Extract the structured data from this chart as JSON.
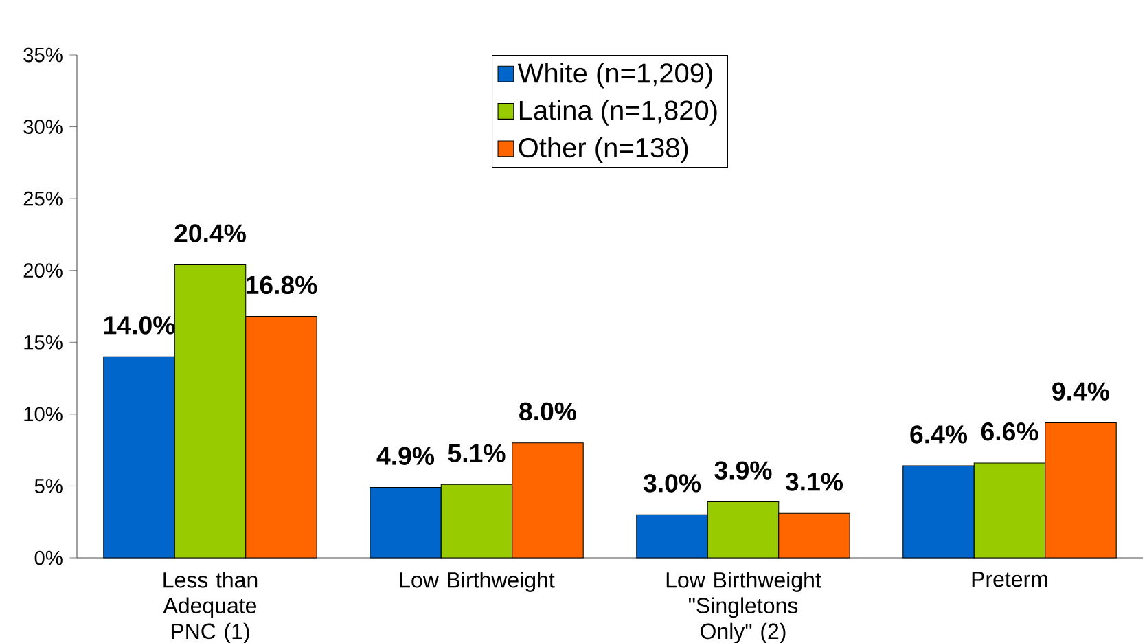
{
  "chart_data": {
    "type": "bar",
    "categories": [
      "Less than Adequate PNC (1)",
      "Low Birthweight",
      "Low Birthweight \"Singletons Only\" (2)",
      "Preterm"
    ],
    "series": [
      {
        "name": "White (n=1,209)",
        "color": "#0066cc",
        "values": [
          14.0,
          4.9,
          3.0,
          6.4
        ],
        "value_labels": [
          "14.0%",
          "4.9%",
          "3.0%",
          "6.4%"
        ]
      },
      {
        "name": "Latina (n=1,820)",
        "color": "#99cc00",
        "values": [
          20.4,
          5.1,
          3.9,
          6.6
        ],
        "value_labels": [
          "20.4%",
          "5.1%",
          "3.9%",
          "6.6%"
        ]
      },
      {
        "name": "Other (n=138)",
        "color": "#ff6600",
        "values": [
          16.8,
          8.0,
          3.1,
          9.4
        ],
        "value_labels": [
          "16.8%",
          "8.0%",
          "3.1%",
          "9.4%"
        ]
      }
    ],
    "ylim": [
      0,
      35
    ],
    "yticks": [
      {
        "value": 0,
        "label": "0%"
      },
      {
        "value": 5,
        "label": "5%"
      },
      {
        "value": 10,
        "label": "10%"
      },
      {
        "value": 15,
        "label": "15%"
      },
      {
        "value": 20,
        "label": "20%"
      },
      {
        "value": 25,
        "label": "25%"
      },
      {
        "value": 30,
        "label": "30%"
      },
      {
        "value": 35,
        "label": "35%"
      }
    ],
    "grid": false,
    "legend": "top"
  }
}
